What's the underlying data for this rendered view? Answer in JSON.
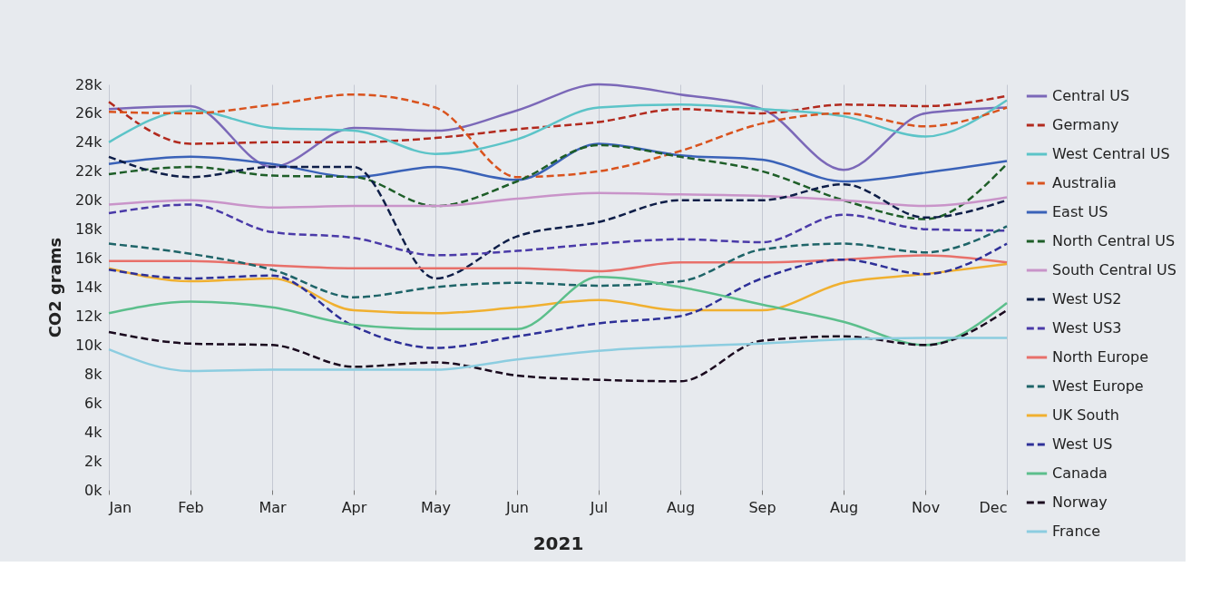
{
  "chart_data": {
    "type": "line",
    "xlabel": "2021",
    "ylabel": "CO2 grams",
    "categories": [
      "Jan",
      "Feb",
      "Mar",
      "Apr",
      "May",
      "Jun",
      "Jul",
      "Aug",
      "Sep",
      "Aug",
      "Nov",
      "Dec"
    ],
    "ylim": [
      0,
      28000
    ],
    "yticks": [
      {
        "value": 0,
        "label": "0k"
      },
      {
        "value": 2000,
        "label": "2k"
      },
      {
        "value": 4000,
        "label": "4k"
      },
      {
        "value": 6000,
        "label": "6k"
      },
      {
        "value": 8000,
        "label": "8k"
      },
      {
        "value": 10000,
        "label": "10k"
      },
      {
        "value": 12000,
        "label": "12k"
      },
      {
        "value": 14000,
        "label": "14k"
      },
      {
        "value": 16000,
        "label": "16k"
      },
      {
        "value": 18000,
        "label": "18k"
      },
      {
        "value": 20000,
        "label": "20k"
      },
      {
        "value": 22000,
        "label": "22k"
      },
      {
        "value": 24000,
        "label": "24k"
      },
      {
        "value": 26000,
        "label": "26k"
      },
      {
        "value": 28000,
        "label": "28k"
      }
    ],
    "grid": "x",
    "legend": "right",
    "marker": "none",
    "series": [
      {
        "name": "Central US",
        "color": "#7b68b8",
        "line_style": "solid",
        "values": [
          26300,
          26500,
          22300,
          25000,
          24800,
          26200,
          28000,
          27300,
          26300,
          22100,
          26000,
          26400
        ]
      },
      {
        "name": "Germany",
        "color": "#b22a1e",
        "line_style": "dashed",
        "values": [
          26800,
          23900,
          24000,
          24000,
          24300,
          24900,
          25400,
          26300,
          26000,
          26600,
          26500,
          27200
        ]
      },
      {
        "name": "West Central US",
        "color": "#5cc4c8",
        "line_style": "solid",
        "values": [
          24000,
          26200,
          25000,
          24800,
          23200,
          24200,
          26400,
          26600,
          26300,
          25800,
          24400,
          26900
        ]
      },
      {
        "name": "Australia",
        "color": "#d9531e",
        "line_style": "dashed",
        "values": [
          26100,
          26000,
          26600,
          27300,
          26400,
          21600,
          22000,
          23400,
          25300,
          26000,
          25100,
          26400
        ]
      },
      {
        "name": "East US",
        "color": "#3a62b8",
        "line_style": "solid",
        "values": [
          22500,
          23000,
          22500,
          21600,
          22300,
          21400,
          23900,
          23100,
          22800,
          21300,
          21900,
          22700
        ]
      },
      {
        "name": "North Central US",
        "color": "#1e5e28",
        "line_style": "dashed",
        "values": [
          21800,
          22300,
          21700,
          21600,
          19600,
          21300,
          23800,
          23000,
          22000,
          20000,
          18700,
          22500
        ]
      },
      {
        "name": "South Central US",
        "color": "#c994c9",
        "line_style": "solid",
        "values": [
          19700,
          20000,
          19500,
          19600,
          19600,
          20100,
          20500,
          20400,
          20300,
          20000,
          19600,
          20200
        ]
      },
      {
        "name": "West US2",
        "color": "#0e1e48",
        "line_style": "dashed",
        "values": [
          23000,
          21600,
          22300,
          22300,
          14600,
          17500,
          18500,
          20000,
          20000,
          21100,
          18800,
          20000
        ]
      },
      {
        "name": "West US3",
        "color": "#4a3aa8",
        "line_style": "dashed",
        "values": [
          19100,
          19700,
          17800,
          17400,
          16200,
          16500,
          17000,
          17300,
          17100,
          19000,
          18000,
          17900
        ]
      },
      {
        "name": "North Europe",
        "color": "#e8706a",
        "line_style": "solid",
        "values": [
          15800,
          15800,
          15500,
          15300,
          15300,
          15300,
          15100,
          15700,
          15700,
          15900,
          16200,
          15700
        ]
      },
      {
        "name": "West Europe",
        "color": "#1e6468",
        "line_style": "dashed",
        "values": [
          17000,
          16300,
          15200,
          13300,
          14000,
          14300,
          14100,
          14400,
          16600,
          17000,
          16400,
          18200
        ]
      },
      {
        "name": "UK South",
        "color": "#f0b030",
        "line_style": "solid",
        "values": [
          15300,
          14400,
          14600,
          12400,
          12200,
          12600,
          13100,
          12400,
          12400,
          14300,
          14900,
          15600
        ]
      },
      {
        "name": "West US",
        "color": "#2e3098",
        "line_style": "dashed",
        "values": [
          15200,
          14600,
          14800,
          11300,
          9800,
          10600,
          11500,
          12000,
          14600,
          15900,
          14900,
          17000
        ]
      },
      {
        "name": "Canada",
        "color": "#5cbf8c",
        "line_style": "solid",
        "values": [
          12200,
          13000,
          12600,
          11400,
          11100,
          11100,
          14700,
          14000,
          12800,
          11600,
          10000,
          12900
        ]
      },
      {
        "name": "Norway",
        "color": "#1a0a1e",
        "line_style": "dashed",
        "values": [
          10900,
          10100,
          10000,
          8500,
          8800,
          7900,
          7600,
          7500,
          10300,
          10600,
          10000,
          12400
        ]
      },
      {
        "name": "France",
        "color": "#8ccde0",
        "line_style": "solid",
        "values": [
          9700,
          8200,
          8300,
          8300,
          8300,
          9000,
          9600,
          9900,
          10100,
          10400,
          10500,
          10500
        ]
      }
    ]
  }
}
